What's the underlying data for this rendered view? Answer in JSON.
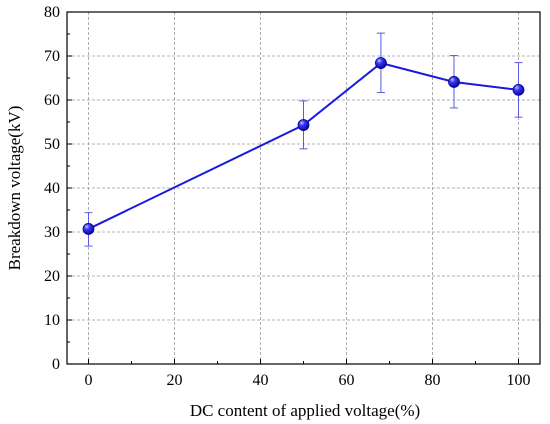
{
  "chart_data": {
    "type": "scatter",
    "xlabel": "DC content of applied voltage(%)",
    "ylabel": "Breakdown voltage(kV)",
    "xlim": [
      -5,
      105
    ],
    "ylim": [
      0,
      80
    ],
    "x_ticks": [
      0,
      20,
      40,
      60,
      80,
      100
    ],
    "y_ticks": [
      0,
      10,
      20,
      30,
      40,
      50,
      60,
      70,
      80
    ],
    "grid": true,
    "legend": "none",
    "series": [
      {
        "color": "#1a1adf",
        "points": [
          {
            "x": 0,
            "y": 30.7,
            "err_low": 26.8,
            "err_high": 34.4
          },
          {
            "x": 50,
            "y": 54.3,
            "err_low": 48.9,
            "err_high": 59.8
          },
          {
            "x": 68,
            "y": 68.4,
            "err_low": 61.7,
            "err_high": 75.2
          },
          {
            "x": 85,
            "y": 64.1,
            "err_low": 58.2,
            "err_high": 70.1
          },
          {
            "x": 100,
            "y": 62.3,
            "err_low": 56.1,
            "err_high": 68.5
          }
        ]
      }
    ]
  }
}
